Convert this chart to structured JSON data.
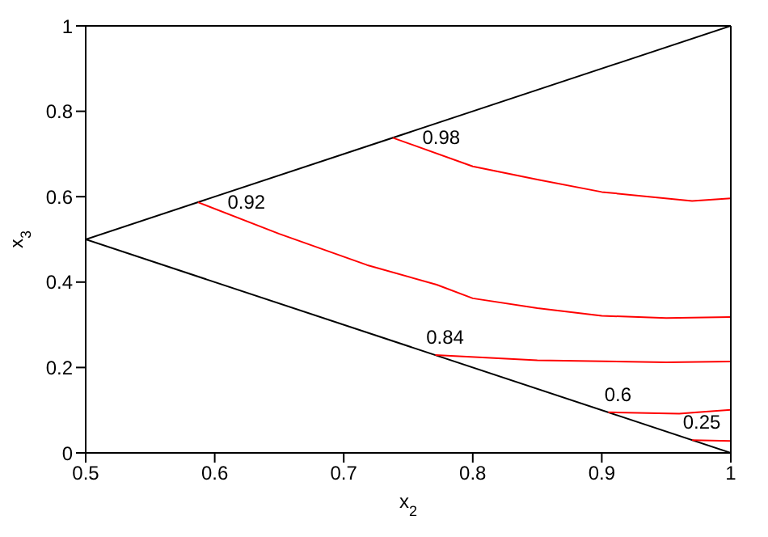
{
  "chart_data": {
    "type": "line",
    "xlabel": "x$_{2}$",
    "ylabel": "x$_{3}$",
    "xlim": [
      0.5,
      1
    ],
    "xticks": [
      0.5,
      0.6,
      0.7,
      0.8,
      0.9,
      1
    ],
    "ylim": [
      0,
      1
    ],
    "yticks": [
      0,
      0.2,
      0.4,
      0.6,
      0.8,
      1
    ],
    "grid": false,
    "marker": "none",
    "line_style": "solid",
    "series": [
      {
        "color": "#000000",
        "x": [
          0.5,
          1
        ],
        "values": [
          0.5,
          1
        ]
      },
      {
        "color": "#000000",
        "x": [
          0.5,
          1
        ],
        "values": [
          0.5,
          0
        ]
      },
      {
        "name": "0.98",
        "color": "#ff0000",
        "x": [
          0.738,
          0.8,
          0.85,
          0.9,
          0.97,
          1
        ],
        "values": [
          0.738,
          0.671,
          0.64,
          0.611,
          0.59,
          0.596
        ]
      },
      {
        "name": "0.92",
        "color": "#ff0000",
        "x": [
          0.587,
          0.65,
          0.718,
          0.772,
          0.8,
          0.85,
          0.9,
          0.95,
          1
        ],
        "values": [
          0.587,
          0.513,
          0.44,
          0.394,
          0.362,
          0.339,
          0.321,
          0.316,
          0.318
        ]
      },
      {
        "name": "0.84",
        "color": "#ff0000",
        "x": [
          0.771,
          0.85,
          0.95,
          1
        ],
        "values": [
          0.229,
          0.217,
          0.212,
          0.214
        ]
      },
      {
        "name": "0.6",
        "color": "#ff0000",
        "x": [
          0.905,
          0.96,
          1
        ],
        "values": [
          0.095,
          0.092,
          0.101
        ]
      },
      {
        "name": "0.25",
        "color": "#ff0000",
        "x": [
          0.97,
          1
        ],
        "values": [
          0.03,
          0.028
        ]
      }
    ]
  }
}
